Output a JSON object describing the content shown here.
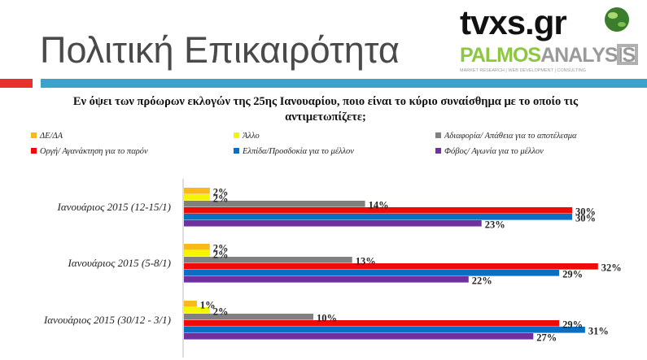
{
  "header": {
    "title": "Πολιτική Επικαιρότητα",
    "logo_text": "tvxs.gr",
    "brand_main": "PALMOS",
    "brand_accent": "ANALYSIS",
    "brand_tagline": "MARKET RESEARCH | WEB DEVELOPMENT | CONSULTING"
  },
  "chart_data": {
    "type": "bar",
    "orientation": "horizontal",
    "title": "Εν όψει των πρόωρων εκλογών της 25ης Ιανουαρίου, ποιο είναι το κύριο συναίσθημα με το οποίο τις αντιμετωπίζετε;",
    "legend_position": "top",
    "grid": false,
    "xlim": [
      0,
      37
    ],
    "categories": [
      "Ιανουάριος 2015 (12-15/1)",
      "Ιανουάριος 2015 (5-8/1)",
      "Ιανουάριος 2015 (30/12 - 3/1)"
    ],
    "series": [
      {
        "name": "ΔΕ/ΔΑ",
        "color": "#f9b919",
        "values": [
          2,
          2,
          1
        ],
        "labels": [
          "2%",
          "2%",
          "1%"
        ]
      },
      {
        "name": "Άλλο",
        "color": "#f5f500",
        "values": [
          2,
          2,
          2
        ],
        "labels": [
          "2%",
          "2%",
          "2%"
        ]
      },
      {
        "name": "Αδιαφορία/ Απάθεια για το αποτέλεσμα",
        "color": "#808080",
        "values": [
          14,
          13,
          10
        ],
        "labels": [
          "14%",
          "13%",
          "10%"
        ]
      },
      {
        "name": "Οργή/ Αγανάκτηση για το παρόν",
        "color": "#f00a0a",
        "values": [
          30,
          32,
          29
        ],
        "labels": [
          "30%",
          "32%",
          "29%"
        ]
      },
      {
        "name": "Ελπίδα/Προσδοκία για το μέλλον",
        "color": "#0a6fc2",
        "values": [
          30,
          29,
          31
        ],
        "labels": [
          "30%",
          "29%",
          "31%"
        ]
      },
      {
        "name": "Φόβος/ Αγωνία για το μέλλον",
        "color": "#7030a0",
        "values": [
          23,
          22,
          27
        ],
        "labels": [
          "23%",
          "22%",
          "27%"
        ]
      }
    ]
  },
  "colors": {
    "accent_red": "#e8302e",
    "accent_blue": "#3aa3c9",
    "brand_green": "#8dc63f",
    "title_grey": "#4a4a4a"
  }
}
